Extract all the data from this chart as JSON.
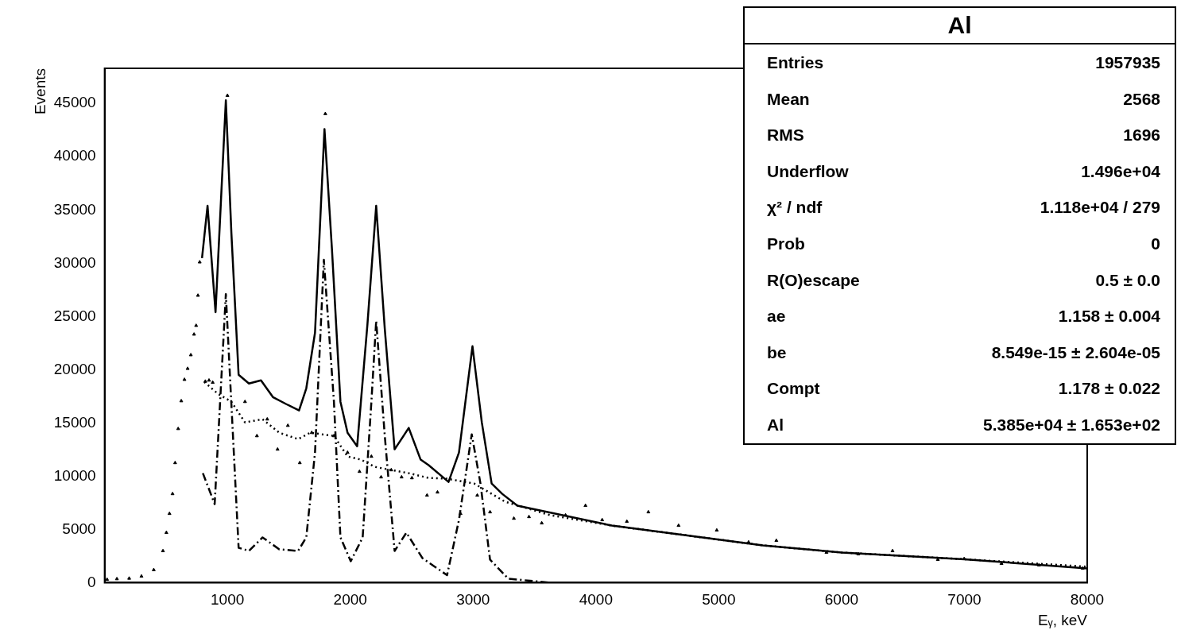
{
  "chart_data": {
    "type": "line",
    "title": "Al",
    "xlabel": "Eᵧ, keV",
    "ylabel": "Events",
    "xlim": [
      0,
      8000
    ],
    "ylim": [
      0,
      48300
    ],
    "xticks": [
      1000,
      2000,
      3000,
      4000,
      5000,
      6000,
      7000,
      8000
    ],
    "yticks": [
      0,
      5000,
      10000,
      15000,
      20000,
      25000,
      30000,
      35000,
      40000,
      45000
    ],
    "grid": false,
    "legend": false,
    "annotations": [
      "Entries",
      "1957935",
      "Mean",
      "2568",
      "RMS",
      "1696",
      "Underflow",
      "1.496e+04",
      "χ² / ndf",
      "1.118e+04 / 279",
      "Prob",
      "0",
      "R(O)escape",
      "0.5 ± 0.0",
      "ae",
      "1.158 ± 0.004",
      "be",
      "8.549e-15 ± 2.604e-05",
      "Compt",
      "1.178 ± 0.022",
      "Al",
      "5.385e+04 ± 1.653e+02"
    ],
    "series": [
      {
        "type": "scatter",
        "marker": "triangle",
        "color": "#000000",
        "x": [
          20,
          100,
          200,
          300,
          400,
          475,
          503,
          528,
          553,
          574,
          599,
          624,
          650,
          676,
          702,
          728,
          745,
          760,
          774,
          820,
          850,
          880,
          1000,
          1143,
          1240,
          1324,
          1408,
          1492,
          1589,
          1686,
          1797,
          1867,
          1978,
          2075,
          2172,
          2251,
          2334,
          2418,
          2502,
          2625,
          2710,
          2898,
          3034,
          3138,
          3332,
          3455,
          3559,
          3753,
          3915,
          4051,
          4252,
          4427,
          4673,
          4984,
          5243,
          5469,
          5877,
          6136,
          6415,
          6784,
          6998,
          7302,
          7607,
          7963
        ],
        "values": [
          300,
          350,
          400,
          600,
          1200,
          2980,
          4700,
          6480,
          8340,
          11250,
          14450,
          17060,
          19070,
          20100,
          21380,
          23320,
          24140,
          26970,
          30100,
          18900,
          19000,
          18800,
          45740,
          16990,
          13780,
          15350,
          12520,
          14750,
          11250,
          14080,
          44030,
          13780,
          12220,
          10430,
          11850,
          9910,
          10580,
          9910,
          9830,
          8200,
          8490,
          6480,
          8200,
          6630,
          6030,
          6180,
          5590,
          6330,
          7230,
          5890,
          5740,
          6630,
          5360,
          4920,
          3800,
          3950,
          2830,
          2680,
          2980,
          2160,
          2240,
          1790,
          1640,
          1340
        ]
      },
      {
        "type": "line",
        "line_style": "solid",
        "color": "#000000",
        "x": [
          793,
          838,
          903,
          987,
          1032,
          1091,
          1175,
          1273,
          1370,
          1480,
          1583,
          1642,
          1713,
          1790,
          1851,
          1920,
          1978,
          2056,
          2140,
          2211,
          2281,
          2361,
          2476,
          2573,
          2638,
          2800,
          2885,
          2995,
          3071,
          3151,
          3237,
          3360,
          4129,
          5359,
          6000,
          7000,
          8000
        ],
        "values": [
          30470,
          35390,
          25400,
          45300,
          32850,
          19520,
          18700,
          19000,
          17430,
          16760,
          16170,
          18250,
          23470,
          42600,
          31290,
          16990,
          14080,
          12810,
          24290,
          35390,
          23840,
          12520,
          14530,
          11550,
          11030,
          9460,
          12220,
          22200,
          15050,
          9310,
          8340,
          7230,
          5360,
          3500,
          2830,
          2200,
          1340
        ]
      },
      {
        "type": "line",
        "line_style": "dashed",
        "color": "#000000",
        "x": [
          800,
          896,
          987,
          1052,
          1091,
          1175,
          1286,
          1422,
          1575,
          1642,
          1713,
          1785,
          1867,
          1920,
          2004,
          2101,
          2172,
          2211,
          2281,
          2361,
          2457,
          2587,
          2788,
          2885,
          2989,
          3060,
          3138,
          3287,
          3630,
          5000,
          8000
        ],
        "values": [
          10280,
          7380,
          27100,
          12200,
          3280,
          2980,
          4250,
          3130,
          2980,
          4250,
          12220,
          30320,
          16990,
          4250,
          2010,
          4250,
          16990,
          24590,
          13780,
          2980,
          4690,
          2310,
          700,
          5890,
          13930,
          9310,
          2160,
          370,
          0,
          0,
          0
        ]
      },
      {
        "type": "line",
        "line_style": "dotted",
        "color": "#000000",
        "x": [
          812,
          923,
          1032,
          1143,
          1286,
          1422,
          1575,
          1674,
          1867,
          1978,
          2088,
          2198,
          2334,
          2476,
          2638,
          2788,
          3008,
          3260,
          3630,
          4129,
          5359,
          6000,
          7000,
          8000
        ],
        "values": [
          18850,
          17730,
          16990,
          15050,
          15350,
          14080,
          13480,
          14080,
          13780,
          11850,
          11550,
          10880,
          10580,
          10280,
          9830,
          9760,
          9310,
          7600,
          6330,
          5360,
          3500,
          2830,
          2200,
          1500
        ]
      }
    ]
  }
}
